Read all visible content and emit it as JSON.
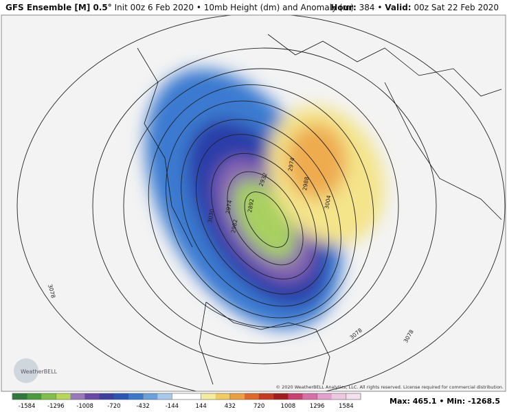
{
  "header": {
    "model": "GFS Ensemble [M] 0.5°",
    "description": "Init 00z 6 Feb 2020 • 10mb Height (dm) and Anomaly (m)",
    "hour_label": "Hour:",
    "hour": "384",
    "valid_label": "Valid:",
    "valid": "00z Sat 22 Feb 2020"
  },
  "contour_labels": [
    "3078",
    "3078",
    "3078",
    "3030",
    "2974",
    "2892",
    "2982",
    "2932",
    "2988",
    "3004",
    "2974"
  ],
  "logo": "WeatherBELL",
  "copyright": "© 2020 WeatherBELL Analytics, LLC. All rights reserved. License required for commercial distribution.",
  "colorbar": {
    "ticks": [
      "-1584",
      "-1296",
      "-1008",
      "-720",
      "-432",
      "-144",
      "144",
      "432",
      "720",
      "1008",
      "1296",
      "1584"
    ],
    "colors": [
      "#2e7a3c",
      "#4a9a3e",
      "#7fbf4a",
      "#b5d85a",
      "#9a78b8",
      "#6a48a8",
      "#3a3fa0",
      "#2a56b8",
      "#3a78cc",
      "#6aa0dc",
      "#a6c8ec",
      "#ffffff",
      "#ffffff",
      "#f6eca0",
      "#f2cc60",
      "#eca040",
      "#e06828",
      "#c83a20",
      "#a41c1c",
      "#c84070",
      "#d870a8",
      "#e4a0cc",
      "#eec8e0",
      "#f4e0ee"
    ]
  },
  "extremes": "Max: 465.1 • Min: -1268.5"
}
